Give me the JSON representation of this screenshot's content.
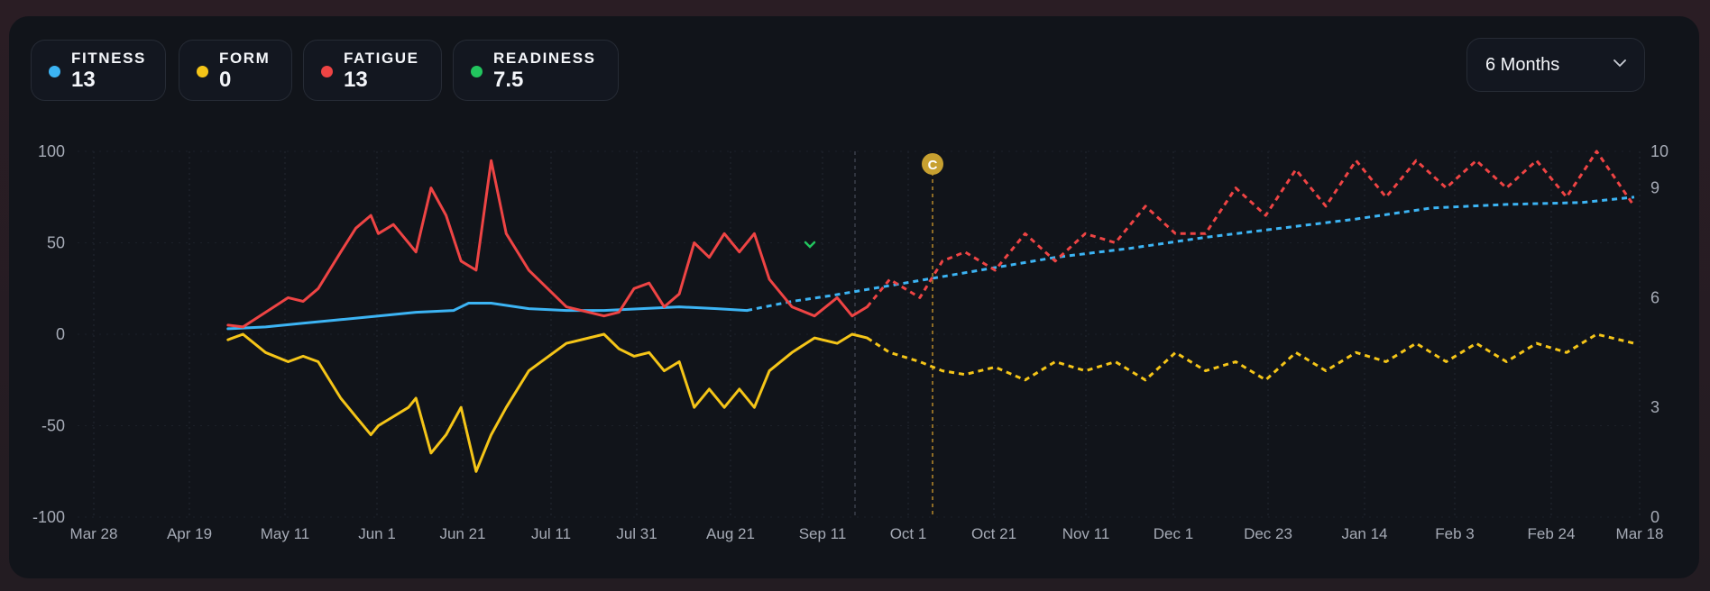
{
  "metrics": [
    {
      "label": "FITNESS",
      "value": "13",
      "color": "#3cb4f4"
    },
    {
      "label": "FORM",
      "value": "0",
      "color": "#f5c518"
    },
    {
      "label": "FATIGUE",
      "value": "13",
      "color": "#ee4444"
    },
    {
      "label": "READINESS",
      "value": "7.5",
      "color": "#22c55e"
    }
  ],
  "range_selector": {
    "selected": "6 Months"
  },
  "marker": {
    "label": "C"
  },
  "chart_data": {
    "type": "line",
    "x_tick_labels": [
      "Mar 28",
      "Apr 19",
      "May 11",
      "Jun 1",
      "Jun 21",
      "Jul 11",
      "Jul 31",
      "Aug 21",
      "Sep 11",
      "Oct 1",
      "Oct 21",
      "Nov 11",
      "Dec 1",
      "Dec 23",
      "Jan 14",
      "Feb 3",
      "Feb 24",
      "Mar 18"
    ],
    "y_left": {
      "range": [
        -100,
        100
      ],
      "ticks": [
        100,
        50,
        0,
        -50,
        -100
      ]
    },
    "y_right": {
      "range": [
        0,
        10
      ],
      "ticks": [
        10,
        9,
        6,
        3,
        0
      ]
    },
    "grid": true,
    "actual_end_date": "Sep 11",
    "marker_date": "Oct 4",
    "series": [
      {
        "name": "Fitness",
        "color": "#3cb4f4",
        "axis": "left",
        "actual": [
          [
            20,
            3
          ],
          [
            25,
            4
          ],
          [
            30,
            6
          ],
          [
            35,
            8
          ],
          [
            40,
            10
          ],
          [
            45,
            12
          ],
          [
            50,
            13
          ],
          [
            52,
            17
          ],
          [
            55,
            17
          ],
          [
            60,
            14
          ],
          [
            65,
            13
          ],
          [
            70,
            13
          ],
          [
            75,
            14
          ],
          [
            80,
            15
          ],
          [
            85,
            14
          ],
          [
            89,
            13
          ]
        ],
        "projected": [
          [
            89,
            13
          ],
          [
            95,
            18
          ],
          [
            100,
            21
          ],
          [
            110,
            28
          ],
          [
            120,
            35
          ],
          [
            130,
            42
          ],
          [
            140,
            47
          ],
          [
            150,
            53
          ],
          [
            160,
            58
          ],
          [
            170,
            63
          ],
          [
            180,
            69
          ],
          [
            190,
            71
          ],
          [
            200,
            72
          ],
          [
            207,
            75
          ]
        ]
      },
      {
        "name": "Fatigue",
        "color": "#ee4444",
        "axis": "left",
        "actual": [
          [
            20,
            5
          ],
          [
            22,
            4
          ],
          [
            25,
            12
          ],
          [
            28,
            20
          ],
          [
            30,
            18
          ],
          [
            32,
            25
          ],
          [
            35,
            45
          ],
          [
            37,
            58
          ],
          [
            39,
            65
          ],
          [
            40,
            55
          ],
          [
            42,
            60
          ],
          [
            44,
            50
          ],
          [
            45,
            45
          ],
          [
            47,
            80
          ],
          [
            49,
            65
          ],
          [
            51,
            40
          ],
          [
            53,
            35
          ],
          [
            55,
            95
          ],
          [
            57,
            55
          ],
          [
            60,
            35
          ],
          [
            65,
            15
          ],
          [
            70,
            10
          ],
          [
            72,
            12
          ],
          [
            74,
            25
          ],
          [
            76,
            28
          ],
          [
            78,
            15
          ],
          [
            80,
            22
          ],
          [
            82,
            50
          ],
          [
            84,
            42
          ],
          [
            86,
            55
          ],
          [
            88,
            45
          ],
          [
            90,
            55
          ],
          [
            92,
            30
          ],
          [
            95,
            15
          ],
          [
            98,
            10
          ],
          [
            101,
            20
          ],
          [
            103,
            10
          ],
          [
            105,
            15
          ]
        ],
        "projected": [
          [
            105,
            15
          ],
          [
            108,
            30
          ],
          [
            112,
            20
          ],
          [
            115,
            40
          ],
          [
            118,
            45
          ],
          [
            122,
            35
          ],
          [
            126,
            55
          ],
          [
            130,
            40
          ],
          [
            134,
            55
          ],
          [
            138,
            50
          ],
          [
            142,
            70
          ],
          [
            146,
            55
          ],
          [
            150,
            55
          ],
          [
            154,
            80
          ],
          [
            158,
            65
          ],
          [
            162,
            90
          ],
          [
            166,
            70
          ],
          [
            170,
            95
          ],
          [
            174,
            75
          ],
          [
            178,
            95
          ],
          [
            182,
            80
          ],
          [
            186,
            95
          ],
          [
            190,
            80
          ],
          [
            194,
            95
          ],
          [
            198,
            75
          ],
          [
            202,
            100
          ],
          [
            207,
            70
          ]
        ]
      },
      {
        "name": "Form",
        "color": "#f5c518",
        "axis": "left",
        "actual": [
          [
            20,
            -3
          ],
          [
            22,
            0
          ],
          [
            25,
            -10
          ],
          [
            28,
            -15
          ],
          [
            30,
            -12
          ],
          [
            32,
            -15
          ],
          [
            35,
            -35
          ],
          [
            37,
            -45
          ],
          [
            39,
            -55
          ],
          [
            40,
            -50
          ],
          [
            42,
            -45
          ],
          [
            44,
            -40
          ],
          [
            45,
            -35
          ],
          [
            47,
            -65
          ],
          [
            49,
            -55
          ],
          [
            51,
            -40
          ],
          [
            53,
            -75
          ],
          [
            55,
            -55
          ],
          [
            57,
            -40
          ],
          [
            60,
            -20
          ],
          [
            65,
            -5
          ],
          [
            70,
            0
          ],
          [
            72,
            -8
          ],
          [
            74,
            -12
          ],
          [
            76,
            -10
          ],
          [
            78,
            -20
          ],
          [
            80,
            -15
          ],
          [
            82,
            -40
          ],
          [
            84,
            -30
          ],
          [
            86,
            -40
          ],
          [
            88,
            -30
          ],
          [
            90,
            -40
          ],
          [
            92,
            -20
          ],
          [
            95,
            -10
          ],
          [
            98,
            -2
          ],
          [
            101,
            -5
          ],
          [
            103,
            0
          ],
          [
            105,
            -2
          ]
        ],
        "projected": [
          [
            105,
            -2
          ],
          [
            108,
            -10
          ],
          [
            112,
            -15
          ],
          [
            115,
            -20
          ],
          [
            118,
            -22
          ],
          [
            122,
            -18
          ],
          [
            126,
            -25
          ],
          [
            130,
            -15
          ],
          [
            134,
            -20
          ],
          [
            138,
            -15
          ],
          [
            142,
            -25
          ],
          [
            146,
            -10
          ],
          [
            150,
            -20
          ],
          [
            154,
            -15
          ],
          [
            158,
            -25
          ],
          [
            162,
            -10
          ],
          [
            166,
            -20
          ],
          [
            170,
            -10
          ],
          [
            174,
            -15
          ],
          [
            178,
            -5
          ],
          [
            182,
            -15
          ],
          [
            186,
            -5
          ],
          [
            190,
            -15
          ],
          [
            194,
            -5
          ],
          [
            198,
            -10
          ],
          [
            202,
            0
          ],
          [
            207,
            -5
          ]
        ]
      }
    ]
  }
}
